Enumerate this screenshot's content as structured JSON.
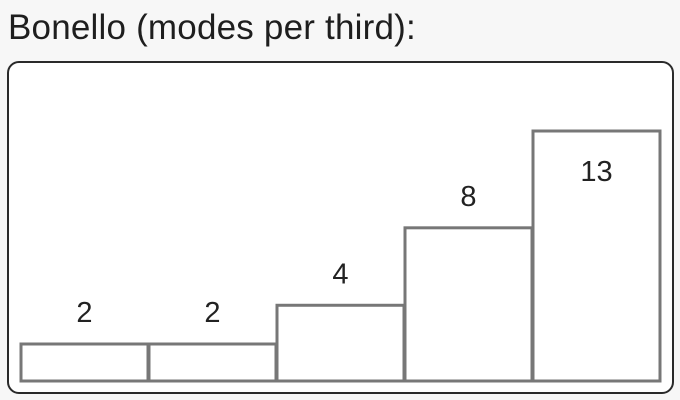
{
  "title": "Bonello (modes per third):",
  "chart_data": {
    "type": "bar",
    "values": [
      2,
      2,
      4,
      8,
      13
    ],
    "data_labels": [
      "2",
      "2",
      "4",
      "8",
      "13"
    ],
    "bar_stroke_color": "#777777",
    "bar_fill_color": "#ffffff",
    "label_color": "#222222"
  }
}
